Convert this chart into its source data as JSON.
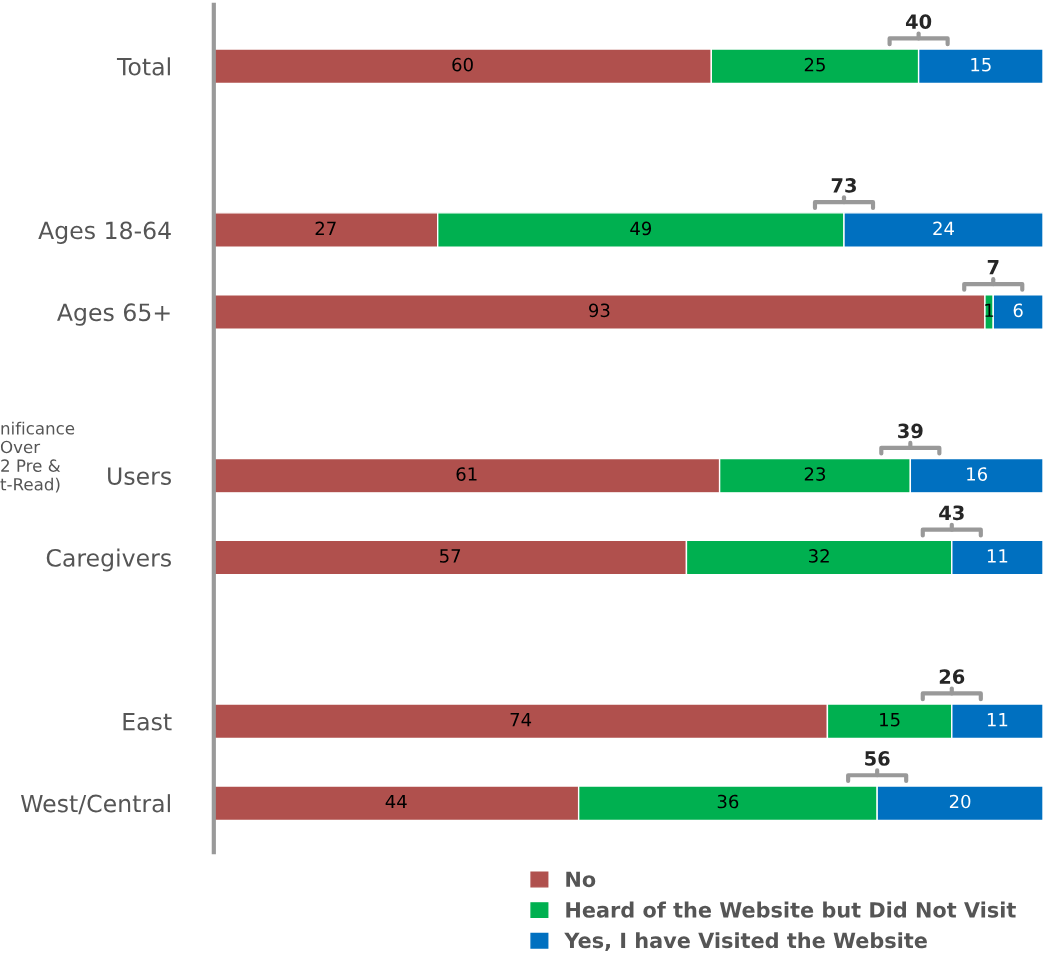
{
  "chart_data": {
    "type": "bar",
    "orientation": "horizontal",
    "stacked": true,
    "categories": [
      "Total",
      null,
      "Ages 18-64",
      "Ages 65+",
      null,
      "Users",
      "Caregivers",
      null,
      "East",
      "West/Central"
    ],
    "series": [
      {
        "name": "No",
        "color": "#b0504d",
        "values": [
          60,
          null,
          27,
          93,
          null,
          61,
          57,
          null,
          74,
          44
        ]
      },
      {
        "name": "Heard of the Website but Did Not Visit",
        "color": "#00b050",
        "values": [
          25,
          null,
          49,
          1,
          null,
          23,
          32,
          null,
          15,
          36
        ]
      },
      {
        "name": "Yes, I have Visited the Website",
        "color": "#0070c0",
        "values": [
          15,
          null,
          24,
          6,
          null,
          16,
          11,
          null,
          11,
          20
        ]
      }
    ],
    "xlim": [
      0,
      100
    ],
    "tick_labels": "y",
    "data_labels": true,
    "grid": false,
    "legend": "bottom",
    "annotations": [
      "40",
      "73",
      "7",
      "39",
      "43",
      "26",
      "56",
      "nificance\nOver\n2 Pre &\nt-Read)"
    ]
  }
}
